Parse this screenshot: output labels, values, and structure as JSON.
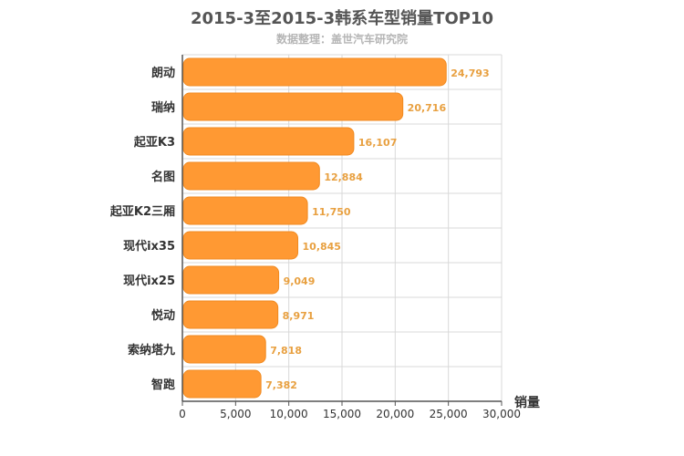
{
  "chart_data": {
    "type": "bar",
    "orientation": "horizontal",
    "title": "2015-3至2015-3韩系车型销量TOP10",
    "subtitle": "数据整理：盖世汽车研究院",
    "xlabel": "销量",
    "ylabel": "",
    "categories": [
      "朗动",
      "瑞纳",
      "起亚K3",
      "名图",
      "起亚K2三厢",
      "现代ix35",
      "现代ix25",
      "悦动",
      "索纳塔九",
      "智跑"
    ],
    "values": [
      24793,
      20716,
      16107,
      12884,
      11750,
      10845,
      9049,
      8971,
      7818,
      7382
    ],
    "value_labels": [
      "24,793",
      "20,716",
      "16,107",
      "12,884",
      "11,750",
      "10,845",
      "9,049",
      "8,971",
      "7,818",
      "7,382"
    ],
    "xlim": [
      0,
      30000
    ],
    "xticks": [
      0,
      5000,
      10000,
      15000,
      20000,
      25000,
      30000
    ],
    "xtick_labels": [
      "0",
      "5,000",
      "10,000",
      "15,000",
      "20,000",
      "25,000",
      "30,000"
    ],
    "grid": true,
    "bar_color": "#ff9933",
    "label_color": "#e8a040"
  }
}
